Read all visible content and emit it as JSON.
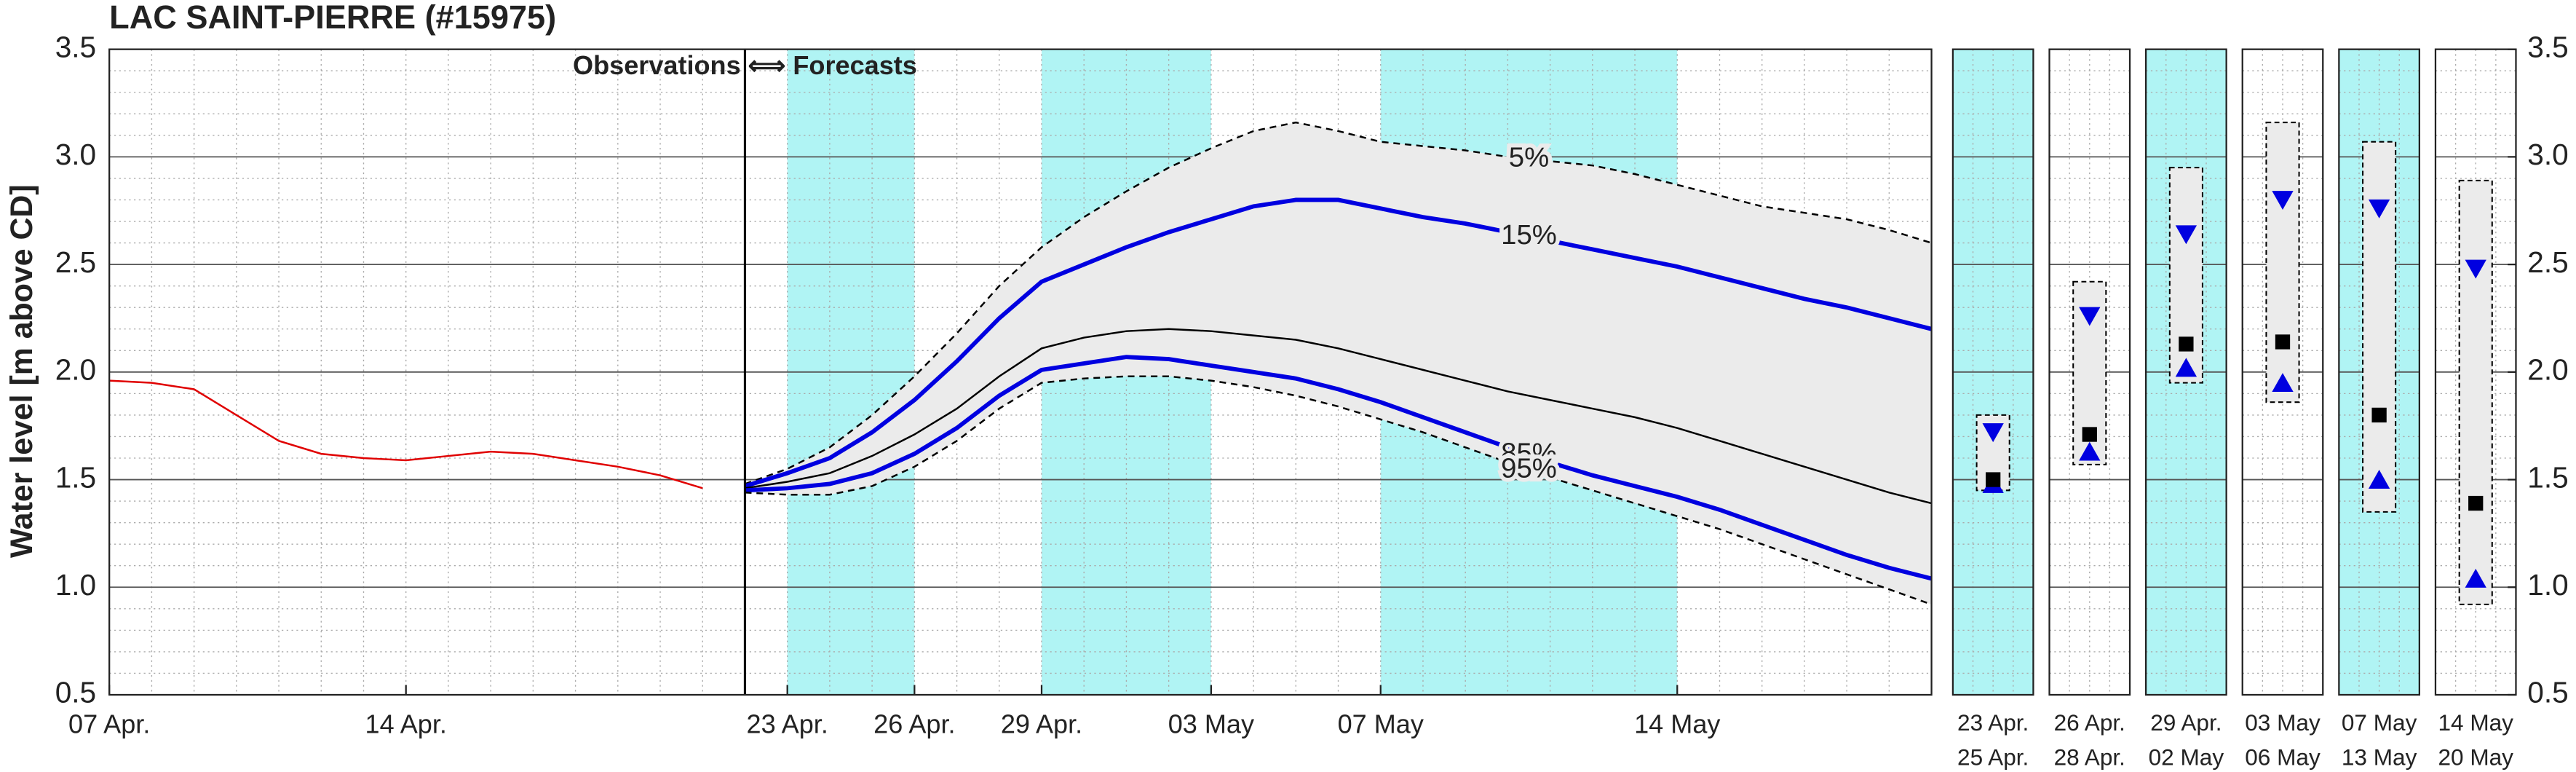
{
  "chart_data": [
    {
      "type": "line",
      "title": "LAC SAINT-PIERRE (#15975)",
      "ylabel": "Water level [m above CD]",
      "annotation": "Observations ⟺ Forecasts",
      "x": [
        7,
        8,
        9,
        10,
        11,
        12,
        13,
        14,
        15,
        16,
        17,
        18,
        19,
        20,
        21,
        22,
        23,
        24,
        25,
        26,
        27,
        28,
        29,
        30,
        31,
        32,
        33,
        34,
        35,
        36,
        37,
        38,
        39,
        40,
        41,
        42,
        43,
        44,
        45,
        46,
        47,
        48,
        49,
        50
      ],
      "xlim": [
        7,
        50
      ],
      "xticks": [
        {
          "value": 7,
          "label": "07 Apr."
        },
        {
          "value": 14,
          "label": "14 Apr."
        },
        {
          "value": 23,
          "label": "23 Apr."
        },
        {
          "value": 26,
          "label": "26 Apr."
        },
        {
          "value": 29,
          "label": "29 Apr."
        },
        {
          "value": 33,
          "label": "03 May"
        },
        {
          "value": 37,
          "label": "07 May"
        },
        {
          "value": 44,
          "label": "14 May"
        }
      ],
      "ylim": [
        0.5,
        3.5
      ],
      "yticks": [
        0.5,
        {
          "value": 1,
          "label": "1.0"
        },
        1.5,
        {
          "value": 2,
          "label": "2.0"
        },
        2.5,
        {
          "value": 3,
          "label": "3.0"
        },
        3.5
      ],
      "grid": true,
      "forecast_start": 22,
      "highlight_bands": [
        [
          23,
          26
        ],
        [
          29,
          33
        ],
        [
          37,
          44
        ]
      ],
      "highlight_color": "#b0f4f4",
      "envelope_color": "#ebebeb",
      "series": [
        {
          "color": "#e00000",
          "values": [
            1.96,
            1.95,
            1.92,
            1.8,
            1.68,
            1.62,
            1.6,
            1.59,
            1.61,
            1.63,
            1.62,
            1.59,
            1.56,
            1.52,
            1.46,
            null,
            null,
            null,
            null,
            null,
            null,
            null,
            null,
            null,
            null,
            null,
            null,
            null,
            null,
            null,
            null,
            null,
            null,
            null,
            null,
            null,
            null,
            null,
            null,
            null,
            null,
            null,
            null,
            null
          ]
        },
        {
          "name": "5%",
          "color": "#000000",
          "style": "dashed",
          "values": [
            null,
            null,
            null,
            null,
            null,
            null,
            null,
            null,
            null,
            null,
            null,
            null,
            null,
            null,
            null,
            1.48,
            1.55,
            1.65,
            1.8,
            1.98,
            2.18,
            2.4,
            2.58,
            2.72,
            2.84,
            2.95,
            3.04,
            3.12,
            3.16,
            3.12,
            3.07,
            3.05,
            3.03,
            3.0,
            2.98,
            2.96,
            2.92,
            2.87,
            2.82,
            2.77,
            2.74,
            2.71,
            2.66,
            2.6
          ]
        },
        {
          "name": "15%",
          "color": "#0000e0",
          "values": [
            null,
            null,
            null,
            null,
            null,
            null,
            null,
            null,
            null,
            null,
            null,
            null,
            null,
            null,
            null,
            1.47,
            1.53,
            1.6,
            1.72,
            1.87,
            2.05,
            2.25,
            2.42,
            2.5,
            2.58,
            2.65,
            2.71,
            2.77,
            2.8,
            2.8,
            2.76,
            2.72,
            2.69,
            2.65,
            2.61,
            2.57,
            2.53,
            2.49,
            2.44,
            2.39,
            2.34,
            2.3,
            2.25,
            2.2
          ]
        },
        {
          "color": "#000000",
          "values": [
            null,
            null,
            null,
            null,
            null,
            null,
            null,
            null,
            null,
            null,
            null,
            null,
            null,
            null,
            null,
            1.46,
            1.49,
            1.53,
            1.61,
            1.71,
            1.83,
            1.98,
            2.11,
            2.16,
            2.19,
            2.2,
            2.19,
            2.17,
            2.15,
            2.11,
            2.06,
            2.01,
            1.96,
            1.91,
            1.87,
            1.83,
            1.79,
            1.74,
            1.68,
            1.62,
            1.56,
            1.5,
            1.44,
            1.39
          ]
        },
        {
          "name": "85%",
          "color": "#0000e0",
          "values": [
            null,
            null,
            null,
            null,
            null,
            null,
            null,
            null,
            null,
            null,
            null,
            null,
            null,
            null,
            null,
            1.45,
            1.46,
            1.48,
            1.53,
            1.62,
            1.74,
            1.89,
            2.01,
            2.04,
            2.07,
            2.06,
            2.03,
            2.0,
            1.97,
            1.92,
            1.86,
            1.79,
            1.72,
            1.65,
            1.58,
            1.52,
            1.47,
            1.42,
            1.36,
            1.29,
            1.22,
            1.15,
            1.09,
            1.04
          ]
        },
        {
          "name": "95%",
          "color": "#000000",
          "style": "dashed",
          "values": [
            null,
            null,
            null,
            null,
            null,
            null,
            null,
            null,
            null,
            null,
            null,
            null,
            null,
            null,
            null,
            1.44,
            1.43,
            1.43,
            1.47,
            1.56,
            1.68,
            1.83,
            1.95,
            1.97,
            1.98,
            1.98,
            1.96,
            1.93,
            1.89,
            1.84,
            1.78,
            1.72,
            1.65,
            1.58,
            1.51,
            1.45,
            1.39,
            1.33,
            1.27,
            1.2,
            1.13,
            1.06,
            0.99,
            0.92
          ]
        }
      ]
    },
    {
      "type": "range",
      "categories": [
        [
          "23 Apr.",
          "25 Apr."
        ],
        [
          "26 Apr.",
          "28 Apr."
        ],
        [
          "29 Apr.",
          "02 May"
        ],
        [
          "03 May",
          "06 May"
        ],
        [
          "07 May",
          "13 May"
        ],
        [
          "14 May",
          "20 May"
        ]
      ],
      "highlight": [
        true,
        false,
        true,
        false,
        true,
        false
      ],
      "highlight_color": "#b0f4f4",
      "box_color": "#ebebeb",
      "ylim": [
        0.5,
        3.5
      ],
      "yticks": [
        0.5,
        {
          "value": 1,
          "label": "1.0"
        },
        1.5,
        {
          "value": 2,
          "label": "2.0"
        },
        2.5,
        {
          "value": 3,
          "label": "3.0"
        },
        3.5
      ],
      "box_top": [
        1.8,
        2.42,
        2.95,
        3.16,
        3.07,
        2.89
      ],
      "box_bottom": [
        1.45,
        1.57,
        1.95,
        1.86,
        1.35,
        0.92
      ],
      "series": [
        {
          "marker": "triangle-down",
          "color": "#0000e0",
          "values": [
            1.72,
            2.26,
            2.64,
            2.8,
            2.76,
            2.48
          ]
        },
        {
          "marker": "triangle-up",
          "color": "#0000e0",
          "values": [
            1.48,
            1.63,
            2.02,
            1.95,
            1.5,
            1.04
          ]
        },
        {
          "marker": "square",
          "color": "#000000",
          "values": [
            1.5,
            1.71,
            2.13,
            2.14,
            1.8,
            1.39
          ]
        }
      ]
    }
  ]
}
